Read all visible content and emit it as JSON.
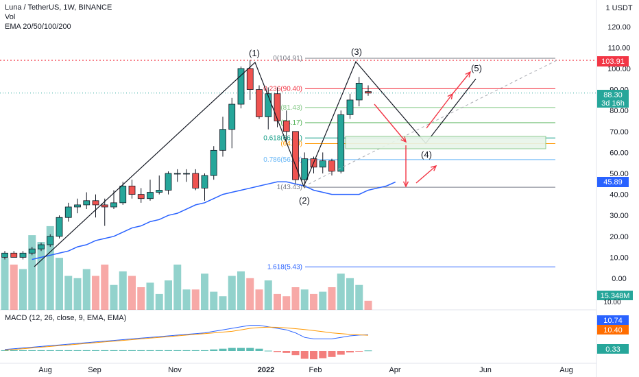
{
  "header": {
    "symbol": "Luna / TetherUS, 1W, BINANCE",
    "vol": "Vol",
    "ema": "EMA 20/50/100/200",
    "currency": "1 USDT",
    "macd": "MACD (12, 26, close, 9, EMA, EMA)"
  },
  "y_ticks": [
    "120.00",
    "110.00",
    "100.00",
    "90.00",
    "80.00",
    "70.00",
    "60.00",
    "50.00",
    "40.00",
    "30.00",
    "20.00",
    "10.00",
    "0.00"
  ],
  "x_ticks": [
    "Aug",
    "Sep",
    "Nov",
    "2022",
    "Feb",
    "Apr",
    "Jun",
    "Aug"
  ],
  "price_tags": {
    "high": "103.91",
    "last": "88.30",
    "countdown": "3d 16h",
    "ema": "45.89",
    "volume": "15.348M",
    "macd": "10.74",
    "signal": "10.40",
    "hist": "0.33",
    "vol_axis_clip": "10.00"
  },
  "fib_labels": [
    "0(104.91)",
    "0.236(90.40)",
    "(81.43)",
    "(74.17)",
    "0.618(66.91)",
    "(64.20)",
    "0.786(56.58)",
    "1(43.43)",
    "1.618(5.43)"
  ],
  "wave_labels": [
    "(1)",
    "(2)",
    "(3)",
    "(4)",
    "(5)"
  ],
  "colors": {
    "up": "#26a69a",
    "down": "#ef5350",
    "ema": "#2962ff",
    "signal": "#ff9800",
    "arrow": "#f23645",
    "fib_0": "#787b86",
    "fib_236": "#f23645",
    "fib_382": "#81c784",
    "fib_5": "#4caf50",
    "fib_618": "#089981",
    "fib_65": "#ff9800",
    "fib_786": "#64b5f6",
    "fib_1": "#787b86",
    "fib_1618": "#2962ff"
  },
  "chart_data": {
    "type": "candlestick",
    "y_range": [
      -5,
      123
    ],
    "candles": [
      {
        "o": 10,
        "h": 13,
        "l": 9,
        "c": 12
      },
      {
        "o": 12,
        "h": 13,
        "l": 10,
        "c": 10
      },
      {
        "o": 10,
        "h": 13,
        "l": 9,
        "c": 12
      },
      {
        "o": 12,
        "h": 15,
        "l": 11,
        "c": 14
      },
      {
        "o": 14,
        "h": 17,
        "l": 13,
        "c": 16
      },
      {
        "o": 16,
        "h": 21,
        "l": 15,
        "c": 20
      },
      {
        "o": 20,
        "h": 30,
        "l": 19,
        "c": 29
      },
      {
        "o": 29,
        "h": 36,
        "l": 27,
        "c": 34
      },
      {
        "o": 34,
        "h": 38,
        "l": 31,
        "c": 35
      },
      {
        "o": 35,
        "h": 41,
        "l": 33,
        "c": 37
      },
      {
        "o": 37,
        "h": 40,
        "l": 29,
        "c": 35
      },
      {
        "o": 35,
        "h": 38,
        "l": 25,
        "c": 34
      },
      {
        "o": 34,
        "h": 42,
        "l": 33,
        "c": 36
      },
      {
        "o": 36,
        "h": 46,
        "l": 35,
        "c": 44
      },
      {
        "o": 44,
        "h": 47,
        "l": 38,
        "c": 40
      },
      {
        "o": 40,
        "h": 43,
        "l": 36,
        "c": 38
      },
      {
        "o": 38,
        "h": 47,
        "l": 37,
        "c": 41
      },
      {
        "o": 41,
        "h": 49,
        "l": 40,
        "c": 42
      },
      {
        "o": 42,
        "h": 51,
        "l": 40,
        "c": 50
      },
      {
        "o": 50,
        "h": 52,
        "l": 46,
        "c": 50
      },
      {
        "o": 50,
        "h": 52,
        "l": 46,
        "c": 50
      },
      {
        "o": 50,
        "h": 52,
        "l": 42,
        "c": 43
      },
      {
        "o": 43,
        "h": 50,
        "l": 37,
        "c": 49
      },
      {
        "o": 49,
        "h": 63,
        "l": 47,
        "c": 61
      },
      {
        "o": 61,
        "h": 77,
        "l": 58,
        "c": 71
      },
      {
        "o": 71,
        "h": 86,
        "l": 62,
        "c": 83
      },
      {
        "o": 83,
        "h": 101,
        "l": 81,
        "c": 100
      },
      {
        "o": 100,
        "h": 104,
        "l": 85,
        "c": 90
      },
      {
        "o": 90,
        "h": 92,
        "l": 76,
        "c": 77
      },
      {
        "o": 77,
        "h": 91,
        "l": 71,
        "c": 88
      },
      {
        "o": 88,
        "h": 91,
        "l": 72,
        "c": 75
      },
      {
        "o": 75,
        "h": 80,
        "l": 65,
        "c": 70
      },
      {
        "o": 70,
        "h": 70,
        "l": 45,
        "c": 47
      },
      {
        "o": 47,
        "h": 60,
        "l": 43,
        "c": 57
      },
      {
        "o": 57,
        "h": 58,
        "l": 50,
        "c": 53
      },
      {
        "o": 53,
        "h": 60,
        "l": 50,
        "c": 56
      },
      {
        "o": 56,
        "h": 57,
        "l": 49,
        "c": 51
      },
      {
        "o": 51,
        "h": 80,
        "l": 50,
        "c": 78
      },
      {
        "o": 78,
        "h": 88,
        "l": 76,
        "c": 85
      },
      {
        "o": 85,
        "h": 96,
        "l": 82,
        "c": 93
      },
      {
        "o": 89,
        "h": 92,
        "l": 87,
        "c": 88.3
      }
    ],
    "volume": [
      23,
      20,
      18,
      33,
      30,
      37,
      23,
      15,
      14,
      18,
      15,
      20,
      11,
      17,
      15,
      10,
      12,
      7,
      13,
      20,
      9,
      9,
      16,
      8,
      6,
      15,
      17,
      14,
      9,
      13,
      7,
      6,
      10,
      9,
      7,
      8,
      10,
      16,
      14,
      11,
      4
    ],
    "ema": [
      9,
      10,
      11,
      12,
      13,
      15,
      16,
      18,
      19,
      20,
      22,
      24,
      25,
      27,
      28,
      30,
      31,
      33,
      35,
      36,
      38,
      40,
      41,
      42,
      43,
      44,
      45,
      46,
      46,
      45,
      44,
      42,
      41,
      40,
      40,
      40,
      40,
      42,
      43,
      44,
      45.89
    ],
    "macd": [
      1,
      1.5,
      2,
      2.5,
      3,
      3.5,
      4,
      4.5,
      5,
      5.5,
      6,
      6.5,
      7,
      7.5,
      8,
      8.5,
      9,
      9.5,
      10,
      10.5,
      11,
      11.5,
      12,
      13,
      14,
      15,
      16,
      17,
      17,
      16,
      15,
      14,
      12,
      9,
      8,
      8,
      8,
      9,
      10,
      10.5,
      10.74
    ],
    "signal": [
      0.5,
      1,
      1.5,
      2,
      2.5,
      3,
      3.5,
      4,
      4.5,
      5,
      5.5,
      6,
      6.5,
      7,
      7.5,
      8,
      8.5,
      9,
      9.5,
      10,
      10.5,
      11,
      11.5,
      12,
      12.5,
      13,
      14,
      15,
      15.5,
      15.8,
      15.7,
      15.3,
      14.8,
      14.2,
      13.5,
      12.8,
      12,
      11.5,
      11,
      10.7,
      10.4
    ],
    "fibs": [
      {
        "label": "0(104.91)",
        "value": 104.91
      },
      {
        "label": "0.236(90.40)",
        "value": 90.4
      },
      {
        "label": "(81.43)",
        "value": 81.43
      },
      {
        "label": "(74.17)",
        "value": 74.17
      },
      {
        "label": "0.618(66.91)",
        "value": 66.91
      },
      {
        "label": "(64.20)",
        "value": 64.2
      },
      {
        "label": "0.786(56.58)",
        "value": 56.58
      },
      {
        "label": "1(43.43)",
        "value": 43.43
      },
      {
        "label": "1.618(5.43)",
        "value": 5.43
      }
    ]
  }
}
